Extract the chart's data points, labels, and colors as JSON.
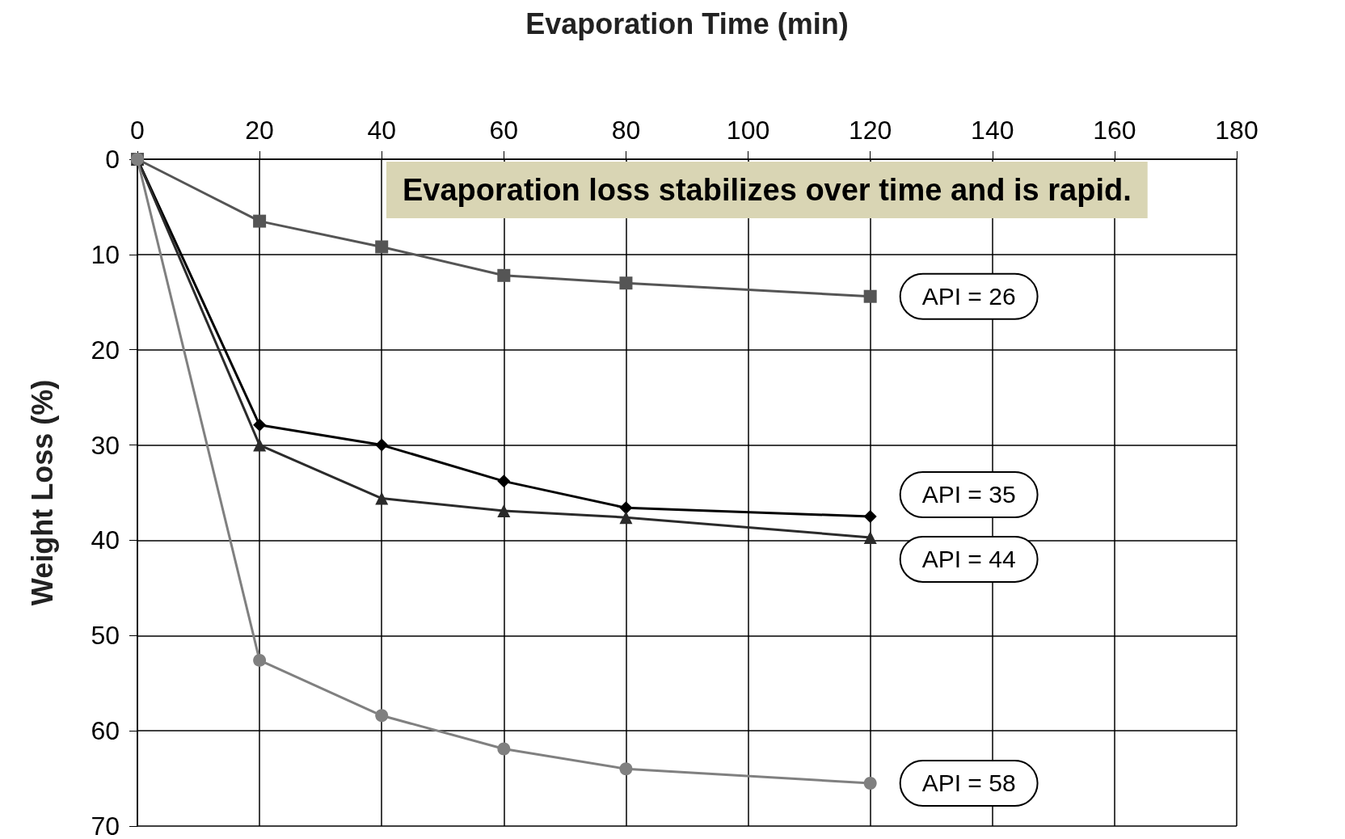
{
  "chart_data": {
    "type": "line",
    "xlabel": "Evaporation Time (min)",
    "ylabel": "Weight Loss (%)",
    "x": [
      0,
      20,
      40,
      60,
      80,
      120
    ],
    "series": [
      {
        "name": "API = 26",
        "color": "#555555",
        "marker": "square",
        "values": [
          0,
          6.5,
          9.2,
          12.2,
          13.0,
          14.4
        ]
      },
      {
        "name": "API = 35",
        "color": "#000000",
        "marker": "diamond",
        "values": [
          0,
          27.9,
          30.0,
          33.8,
          36.6,
          37.5
        ]
      },
      {
        "name": "API = 44",
        "color": "#2b2b2b",
        "marker": "triangle",
        "values": [
          0,
          30.0,
          35.6,
          36.9,
          37.6,
          39.7
        ]
      },
      {
        "name": "API = 58",
        "color": "#808080",
        "marker": "circle",
        "values": [
          0,
          52.6,
          58.4,
          61.9,
          64.0,
          65.5
        ]
      }
    ],
    "xlim": [
      0,
      180
    ],
    "xticks": [
      0,
      20,
      40,
      60,
      80,
      100,
      120,
      140,
      160,
      180
    ],
    "ylim": [
      70,
      0
    ],
    "yticks": [
      0,
      10,
      20,
      30,
      40,
      50,
      60,
      70
    ],
    "grid": true,
    "legend": false,
    "line_style": "solid",
    "annotations": [
      "Evaporation loss stabilizes over time and is rapid."
    ]
  }
}
